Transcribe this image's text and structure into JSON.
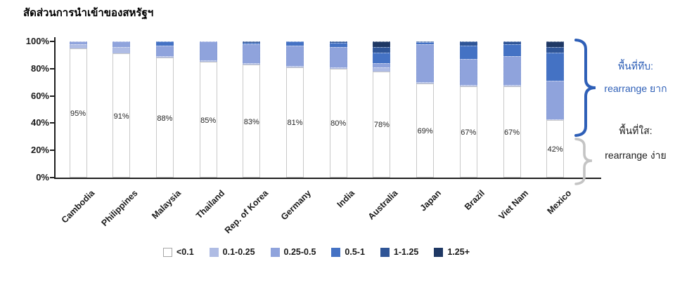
{
  "title": "สัดส่วนการนำเข้าของสหรัฐฯ",
  "chart_data": {
    "type": "bar",
    "stacked": true,
    "title": "สัดส่วนการนำเข้าของสหรัฐฯ",
    "categories": [
      "Cambodia",
      "Philippines",
      "Malaysia",
      "Thailand",
      "Rep. of Korea",
      "Germany",
      "India",
      "Australia",
      "Japan",
      "Brazil",
      "Viet Nam",
      "Mexico"
    ],
    "bar_labels": [
      "95%",
      "91%",
      "88%",
      "85%",
      "83%",
      "81%",
      "80%",
      "78%",
      "69%",
      "67%",
      "67%",
      "42%"
    ],
    "series": [
      {
        "name": "<0.1",
        "color": "#FFFFFF",
        "values": [
          95,
          91,
          88,
          85,
          83,
          81,
          80,
          78,
          69,
          67,
          67,
          42
        ]
      },
      {
        "name": "0.1-0.25",
        "color": "#AFBCE4",
        "values": [
          3,
          5,
          1,
          1,
          1,
          1,
          1,
          3,
          1,
          1,
          1,
          1
        ]
      },
      {
        "name": "0.25-0.5",
        "color": "#8FA3DC",
        "values": [
          2,
          4,
          8,
          14,
          14,
          15,
          15,
          3,
          28,
          19,
          21,
          28
        ]
      },
      {
        "name": "0.5-1",
        "color": "#4472C4",
        "values": [
          0,
          0,
          3,
          0,
          1,
          3,
          3,
          8,
          1.5,
          10,
          9,
          21
        ]
      },
      {
        "name": "1-1.25",
        "color": "#2F5597",
        "values": [
          0,
          0,
          0,
          0,
          1,
          0,
          1,
          4,
          0.5,
          3,
          2,
          4
        ]
      },
      {
        "name": "1.25+",
        "color": "#1F3864",
        "values": [
          0,
          0,
          0,
          0,
          0,
          0,
          0,
          4,
          0,
          0,
          0,
          4
        ]
      }
    ],
    "y_ticks": [
      "0%",
      "20%",
      "40%",
      "60%",
      "80%",
      "100%"
    ],
    "ylim": [
      0,
      100
    ],
    "grid": false,
    "legend_position": "bottom"
  },
  "annotations": {
    "dark": {
      "line1": "พื้นที่ทึบ:",
      "line2": "rearrange ยาก",
      "color": "#2E5FB7"
    },
    "light": {
      "line1": "พื้นที่ใส:",
      "line2": "rearrange ง่าย",
      "color": "#1A1A1A"
    }
  },
  "colors": {
    "axis": "#1F1F1F",
    "brace_dark": "#2E5FB7",
    "brace_light": "#C4C4C4",
    "bar_border": "#C9C9C9"
  }
}
